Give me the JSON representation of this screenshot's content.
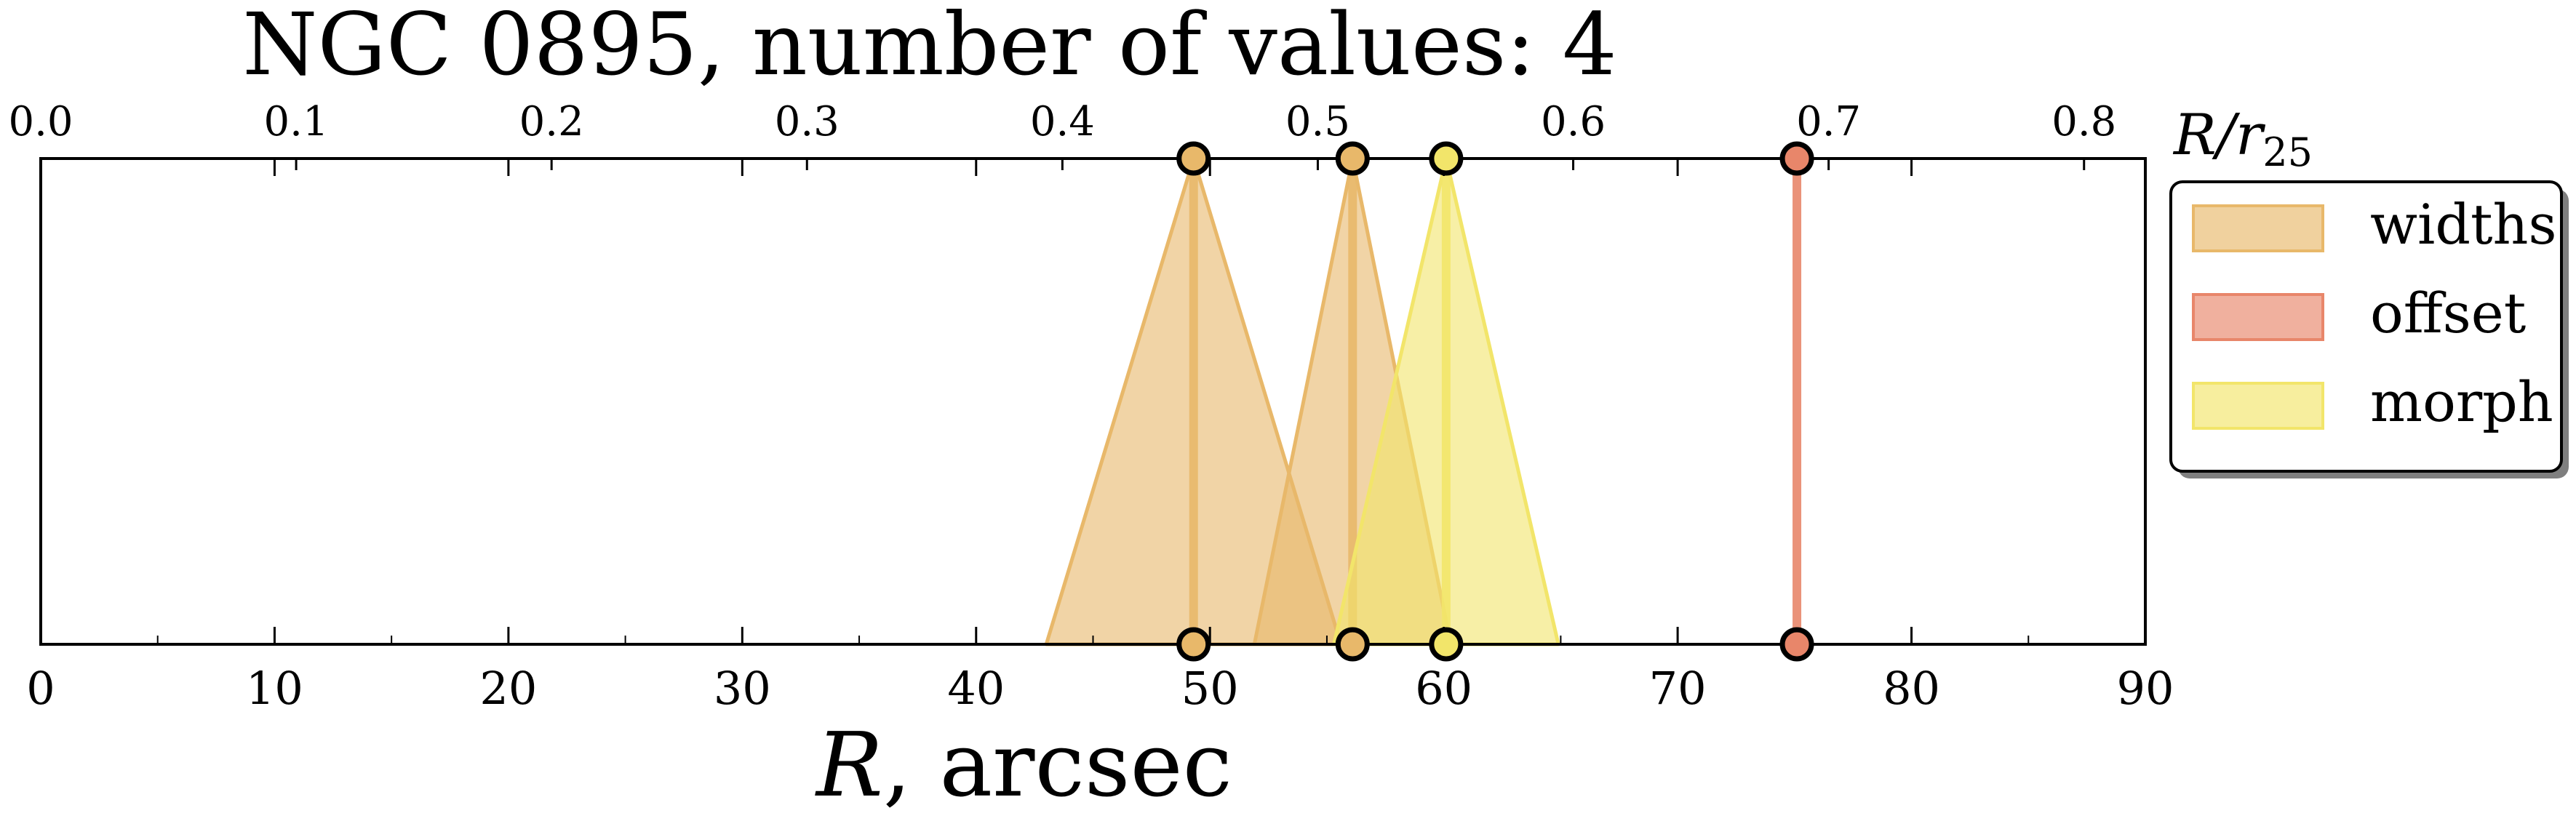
{
  "chart_data": {
    "type": "scatter",
    "title": "NGC 0895, number of values: 4",
    "xlabel": "R, arcsec",
    "xlabel_top": "R/r25",
    "xlim": [
      0,
      90
    ],
    "xlim_top": [
      0,
      0.824
    ],
    "xticks": [
      0,
      10,
      20,
      30,
      40,
      50,
      60,
      70,
      80,
      90
    ],
    "xticks_top": [
      "0.0",
      "0.1",
      "0.2",
      "0.3",
      "0.4",
      "0.5",
      "0.6",
      "0.7",
      "0.8"
    ],
    "grid": false,
    "legend_position": "right",
    "series": [
      {
        "name": "widths",
        "color": "#e8b86a",
        "points": [
          {
            "x": 49.3,
            "width": 6.3
          },
          {
            "x": 56.1,
            "width": 4.2
          }
        ]
      },
      {
        "name": "offset",
        "color": "#e8866a",
        "points": [
          {
            "x": 75.1,
            "width": 0
          }
        ]
      },
      {
        "name": "morph",
        "color": "#f2e56a",
        "points": [
          {
            "x": 60.1,
            "width": 4.8
          }
        ]
      }
    ]
  }
}
